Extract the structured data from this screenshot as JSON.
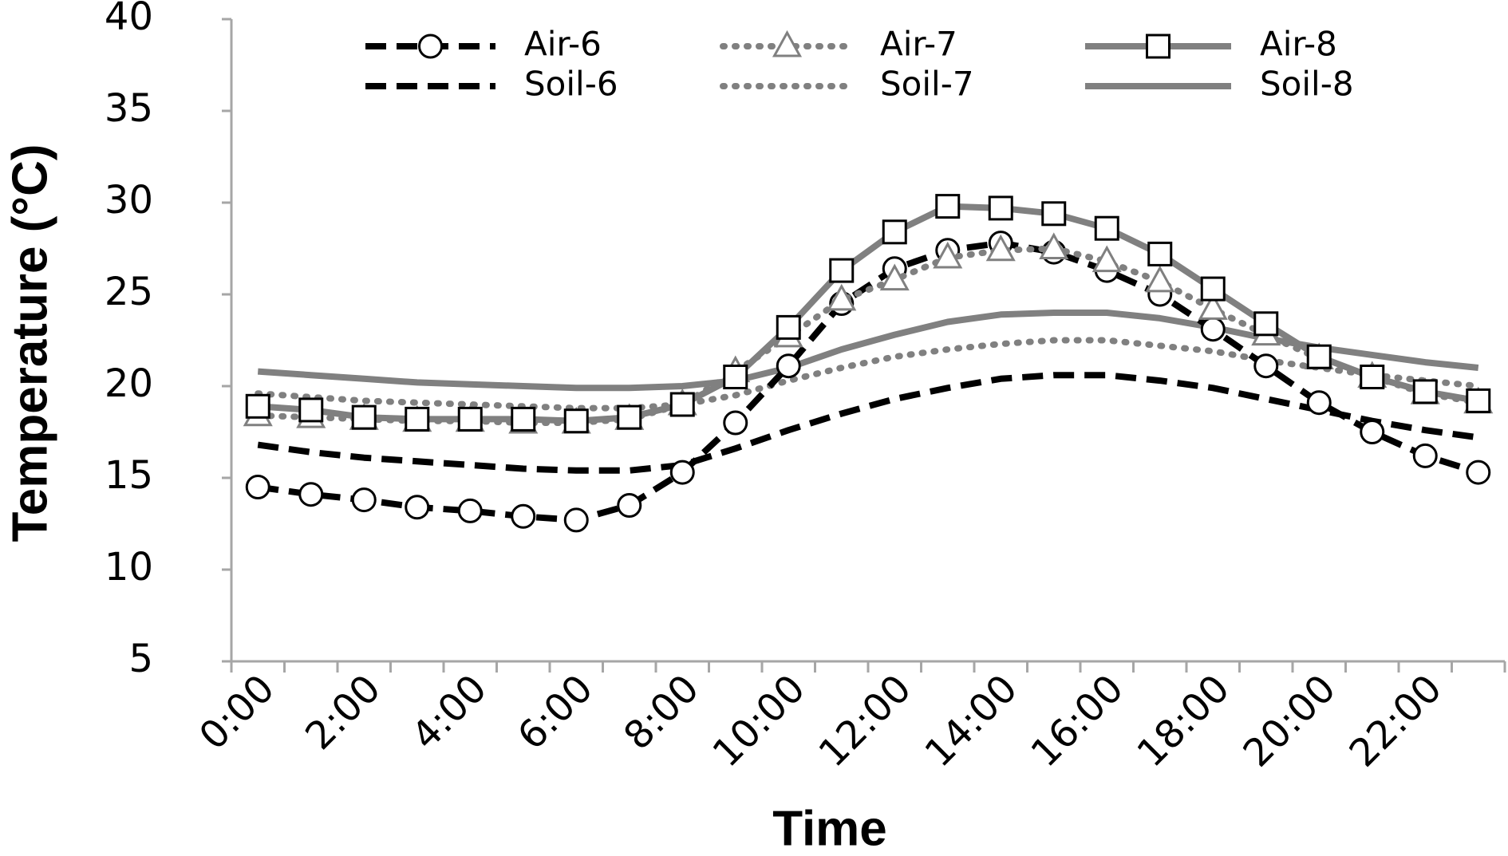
{
  "chart_data": {
    "type": "line",
    "x_label": "Time",
    "y_label": "Temperature (°C)",
    "categories": [
      "0:00",
      null,
      "2:00",
      null,
      "4:00",
      null,
      "6:00",
      null,
      "8:00",
      null,
      "10:00",
      null,
      "12:00",
      null,
      "14:00",
      null,
      "16:00",
      null,
      "18:00",
      null,
      "20:00",
      null,
      "22:00",
      null
    ],
    "ylim": [
      5,
      40
    ],
    "yticks": [
      5,
      10,
      15,
      20,
      25,
      30,
      35,
      40
    ],
    "grid": false,
    "legend": "top",
    "series": [
      {
        "name": "Air-6",
        "color": "#000000",
        "dash": "dashed",
        "marker": "circle",
        "values": [
          14.5,
          14.1,
          13.8,
          13.4,
          13.2,
          12.9,
          12.7,
          13.5,
          15.3,
          18.0,
          21.1,
          24.5,
          26.4,
          27.4,
          27.8,
          27.3,
          26.3,
          25.0,
          23.1,
          21.1,
          19.1,
          17.5,
          16.2,
          15.3
        ]
      },
      {
        "name": "Air-7",
        "color": "#808080",
        "dash": "dotted",
        "marker": "triangle",
        "values": [
          18.4,
          18.3,
          18.2,
          18.1,
          18.1,
          18.0,
          18.0,
          18.2,
          19.0,
          20.8,
          22.7,
          24.7,
          25.8,
          27.0,
          27.4,
          27.5,
          26.8,
          25.7,
          24.2,
          22.8,
          21.5,
          20.5,
          19.6,
          19.1
        ]
      },
      {
        "name": "Air-8",
        "color": "#808080",
        "dash": "solid",
        "marker": "square",
        "values": [
          18.9,
          18.7,
          18.3,
          18.2,
          18.2,
          18.2,
          18.1,
          18.3,
          19.0,
          20.5,
          23.2,
          26.3,
          28.4,
          29.8,
          29.7,
          29.4,
          28.6,
          27.2,
          25.3,
          23.4,
          21.6,
          20.5,
          19.7,
          19.2
        ]
      },
      {
        "name": "Soil-6",
        "color": "#000000",
        "dash": "dashed",
        "values": [
          16.8,
          16.4,
          16.1,
          15.9,
          15.7,
          15.5,
          15.4,
          15.4,
          15.7,
          16.6,
          17.6,
          18.5,
          19.3,
          19.9,
          20.4,
          20.6,
          20.6,
          20.3,
          19.9,
          19.3,
          18.7,
          18.1,
          17.6,
          17.2
        ]
      },
      {
        "name": "Soil-7",
        "color": "#808080",
        "dash": "dotted",
        "values": [
          19.6,
          19.4,
          19.2,
          19.1,
          19.0,
          18.9,
          18.8,
          18.8,
          19.0,
          19.5,
          20.3,
          21.0,
          21.6,
          22.0,
          22.3,
          22.5,
          22.5,
          22.2,
          21.9,
          21.4,
          21.0,
          20.6,
          20.3,
          20.0
        ]
      },
      {
        "name": "Soil-8",
        "color": "#808080",
        "dash": "solid",
        "values": [
          20.8,
          20.6,
          20.4,
          20.2,
          20.1,
          20.0,
          19.9,
          19.9,
          20.0,
          20.3,
          21.0,
          22.0,
          22.8,
          23.5,
          23.9,
          24.0,
          24.0,
          23.7,
          23.2,
          22.6,
          22.1,
          21.7,
          21.3,
          21.0
        ]
      }
    ]
  }
}
